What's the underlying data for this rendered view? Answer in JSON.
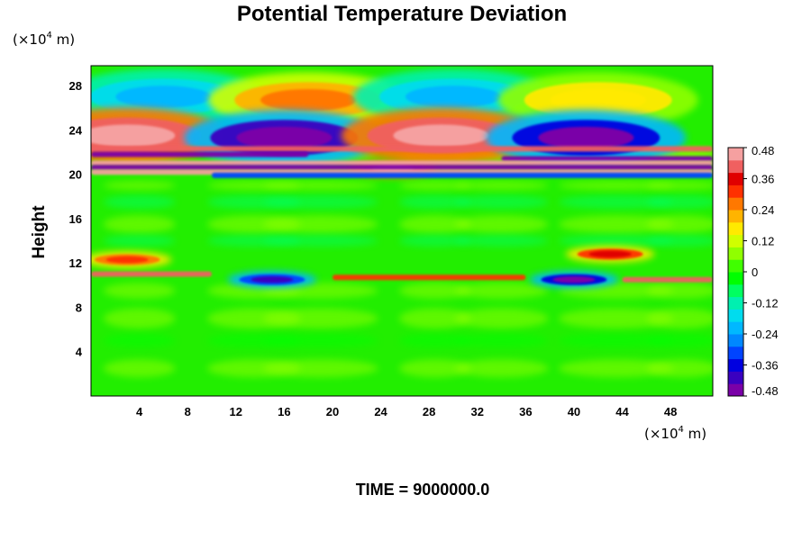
{
  "chart_data": {
    "type": "heatmap",
    "title": "Potential Temperature Deviation",
    "ylabel": "Height",
    "xlabel": "",
    "x_unit": {
      "prefix": "(×10",
      "exp": "4",
      "suffix": " m)"
    },
    "y_unit": {
      "prefix": "(×10",
      "exp": "4",
      "suffix": " m)"
    },
    "xlim": [
      0,
      51.5
    ],
    "ylim": [
      0,
      29.8
    ],
    "x_ticks": [
      "4",
      "8",
      "12",
      "16",
      "20",
      "24",
      "28",
      "32",
      "36",
      "40",
      "44",
      "48"
    ],
    "y_ticks": [
      "4",
      "8",
      "12",
      "16",
      "20",
      "24",
      "28"
    ],
    "colorbar": {
      "range": [
        -0.48,
        0.48
      ],
      "labels": [
        "0.48",
        "0.36",
        "0.24",
        "0.12",
        "0",
        "-0.12",
        "-0.24",
        "-0.36",
        "-0.48"
      ],
      "colors": [
        "#7a00a8",
        "#3a00c0",
        "#0000e0",
        "#0044ff",
        "#0088ff",
        "#00b8ff",
        "#00dcee",
        "#00f0b0",
        "#00ff60",
        "#00ff00",
        "#40ff00",
        "#90ff00",
        "#d0ff00",
        "#ffea00",
        "#ffb400",
        "#ff7800",
        "#ff3000",
        "#e00000",
        "#f06060",
        "#f5a0a0"
      ]
    },
    "features": [
      {
        "x": 6,
        "y": 27,
        "value": -0.24
      },
      {
        "x": 18,
        "y": 26.7,
        "value": 0.24
      },
      {
        "x": 30,
        "y": 27,
        "value": -0.2
      },
      {
        "x": 42,
        "y": 26.7,
        "value": 0.18
      },
      {
        "x": 3,
        "y": 23.5,
        "value": 0.48
      },
      {
        "x": 16,
        "y": 23.3,
        "value": -0.48
      },
      {
        "x": 29,
        "y": 23.5,
        "value": 0.48
      },
      {
        "x": 41,
        "y": 23.3,
        "value": -0.45
      },
      {
        "x": 25,
        "y": 20.5,
        "value": 0.48
      },
      {
        "x": 15,
        "y": 10.5,
        "value": -0.4
      },
      {
        "x": 40,
        "y": 10.5,
        "value": -0.44
      },
      {
        "x": 3,
        "y": 12.3,
        "value": 0.3
      },
      {
        "x": 43,
        "y": 12.8,
        "value": 0.36
      }
    ],
    "time": "TIME = 9000000.0"
  }
}
